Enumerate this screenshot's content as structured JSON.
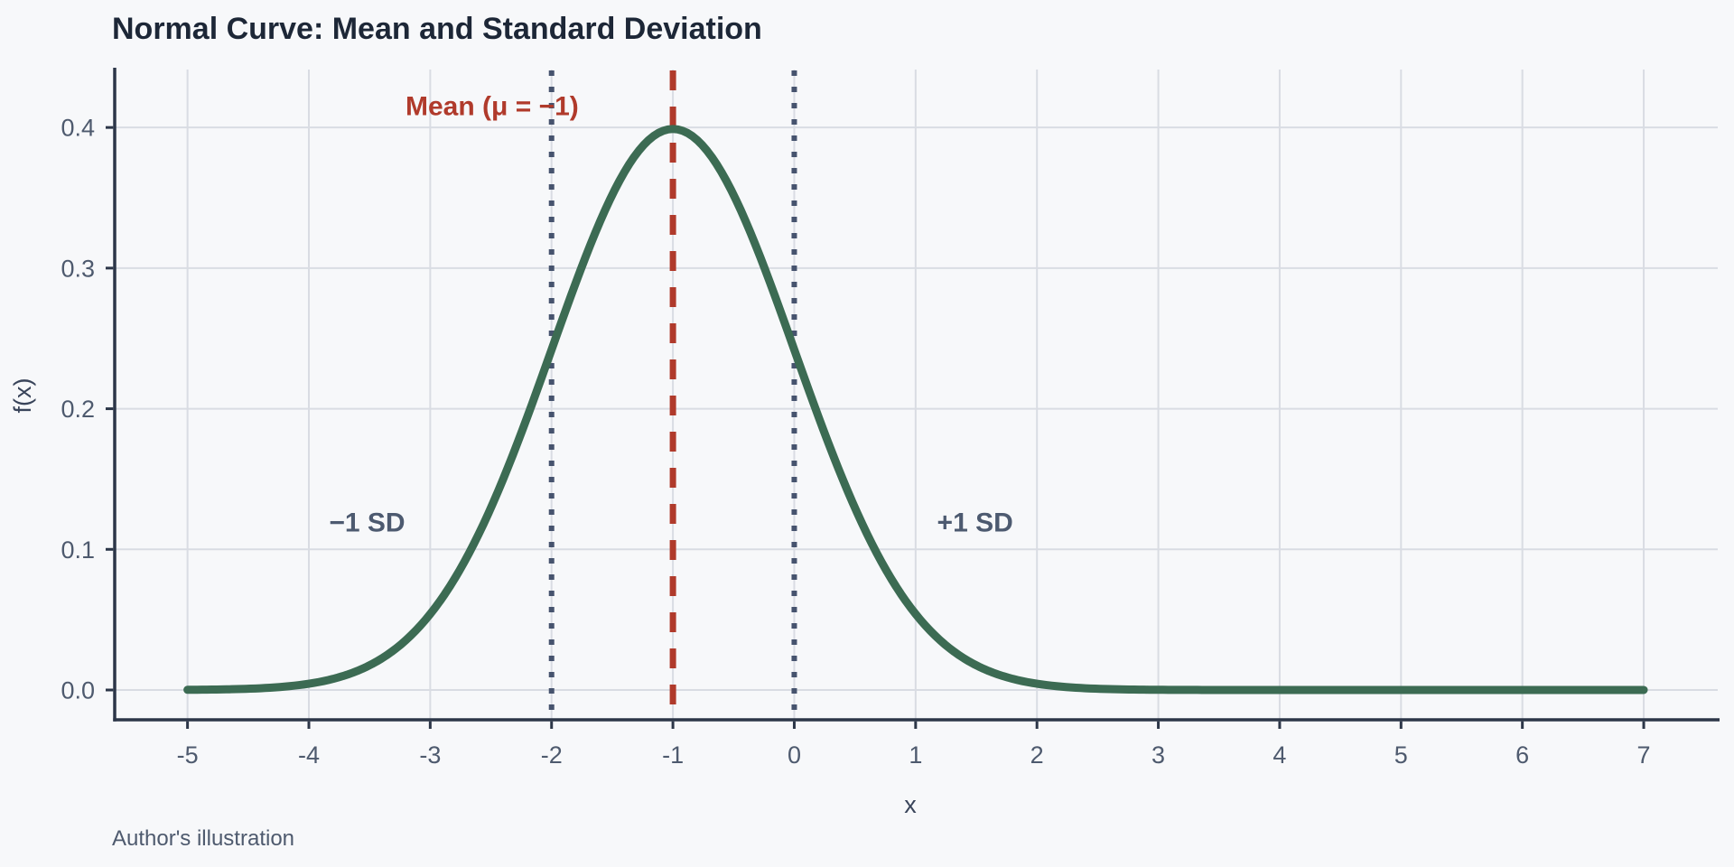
{
  "title": "Normal Curve: Mean and Standard Deviation",
  "caption": "Author's illustration",
  "colors": {
    "background": "#f7f8fa",
    "title_text": "#1d2737",
    "caption_text": "#4e5a6e",
    "tick_text": "#4e5a6e",
    "axis_title_text": "#39445a",
    "axis_line": "#2c3648",
    "gridline": "#d9dce3",
    "curve": "#3c6b53",
    "mean_line": "#b03a2b",
    "sd_line": "#46536e",
    "sd_label": "#4d5a70"
  },
  "chart_data": {
    "type": "line",
    "title": "Normal Curve: Mean and Standard Deviation",
    "xlabel": "x",
    "ylabel": "f(x)",
    "x_ticks": [
      -5,
      -4,
      -3,
      -2,
      -1,
      0,
      1,
      2,
      3,
      4,
      5,
      6,
      7
    ],
    "y_ticks": [
      0.0,
      0.1,
      0.2,
      0.3,
      0.4
    ],
    "xlim": [
      -5.6,
      7.61
    ],
    "ylim": [
      -0.0212,
      0.4412
    ],
    "grid": true,
    "legend": false,
    "curve": {
      "distribution": "normal-pdf",
      "mu": -1,
      "sigma": 1,
      "x_min": -5,
      "x_max": 7,
      "peak_y": 0.3989,
      "color": "#3c6b53"
    },
    "vlines": [
      {
        "x": -1,
        "style": "dashed",
        "color": "#b03a2b",
        "role": "mean"
      },
      {
        "x": -2,
        "style": "dotted",
        "color": "#46536e",
        "role": "minus-1-sd"
      },
      {
        "x": 0,
        "style": "dotted",
        "color": "#46536e",
        "role": "plus-1-sd"
      }
    ],
    "annotations": [
      {
        "text": "Mean (μ = −1)",
        "x": -2.49,
        "y": 0.4155,
        "color": "#b03a2b",
        "bold": true,
        "anchor": "middle"
      },
      {
        "text": "−1 SD",
        "x": -3.52,
        "y": 0.1195,
        "color": "#4d5a70",
        "bold": true,
        "anchor": "middle"
      },
      {
        "text": "+1 SD",
        "x": 1.49,
        "y": 0.1195,
        "color": "#4d5a70",
        "bold": true,
        "anchor": "middle"
      }
    ]
  }
}
